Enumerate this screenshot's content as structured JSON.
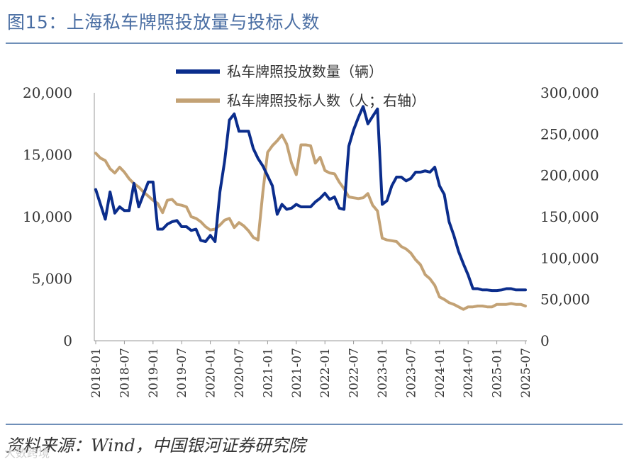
{
  "title": "图15：上海私车牌照投放量与投标人数",
  "source": "资料来源：Wind，中国银河证券研究院",
  "watermark": "大数跨境",
  "chart_data": {
    "type": "line",
    "title": "上海私车牌照投放量与投标人数",
    "x": [
      "2018-01",
      "2018-02",
      "2018-03",
      "2018-04",
      "2018-05",
      "2018-06",
      "2018-07",
      "2018-08",
      "2018-09",
      "2018-10",
      "2018-11",
      "2018-12",
      "2019-01",
      "2019-02",
      "2019-03",
      "2019-04",
      "2019-05",
      "2019-06",
      "2019-07",
      "2019-08",
      "2019-09",
      "2019-10",
      "2019-11",
      "2019-12",
      "2020-01",
      "2020-02",
      "2020-03",
      "2020-04",
      "2020-05",
      "2020-06",
      "2020-07",
      "2020-08",
      "2020-09",
      "2020-10",
      "2020-11",
      "2020-12",
      "2021-01",
      "2021-02",
      "2021-03",
      "2021-04",
      "2021-05",
      "2021-06",
      "2021-07",
      "2021-08",
      "2021-09",
      "2021-10",
      "2021-11",
      "2021-12",
      "2022-01",
      "2022-02",
      "2022-03",
      "2022-04",
      "2022-05",
      "2022-06",
      "2022-07",
      "2022-08",
      "2022-09",
      "2022-10",
      "2022-11",
      "2022-12",
      "2023-01",
      "2023-02",
      "2023-03",
      "2023-04",
      "2023-05",
      "2023-06",
      "2023-07",
      "2023-08",
      "2023-09",
      "2023-10",
      "2023-11",
      "2023-12",
      "2024-01",
      "2024-02",
      "2024-03",
      "2024-04",
      "2024-05",
      "2024-06",
      "2024-07",
      "2024-08",
      "2024-09",
      "2024-10",
      "2024-11",
      "2024-12",
      "2025-01",
      "2025-02",
      "2025-03",
      "2025-04",
      "2025-05",
      "2025-06",
      "2025-07"
    ],
    "x_tick_labels": [
      "2018-01",
      "2018-07",
      "2019-01",
      "2019-07",
      "2020-01",
      "2020-07",
      "2021-01",
      "2021-07",
      "2022-01",
      "2022-07",
      "2023-01",
      "2023-07",
      "2024-01",
      "2024-07",
      "2025-01",
      "2025-07"
    ],
    "series": [
      {
        "name": "私车牌照投放数量（辆）",
        "axis": "left",
        "color": "#0b2d8c",
        "values": [
          12200,
          11000,
          9800,
          12000,
          10300,
          10800,
          10500,
          10500,
          12700,
          10800,
          11800,
          12800,
          12800,
          9000,
          9000,
          9400,
          9600,
          9700,
          9200,
          9200,
          8900,
          9000,
          8100,
          8000,
          8500,
          8000,
          12000,
          14500,
          17800,
          18300,
          16900,
          16900,
          16900,
          15500,
          14700,
          14100,
          13300,
          12500,
          10200,
          11000,
          10600,
          10700,
          11000,
          10800,
          10800,
          10800,
          11200,
          11500,
          11900,
          11400,
          11600,
          10700,
          10600,
          15700,
          17000,
          18000,
          18900,
          17500,
          18100,
          18700,
          11000,
          11300,
          12500,
          13200,
          13200,
          12900,
          13100,
          13600,
          13600,
          13700,
          13600,
          14000,
          12500,
          11800,
          9600,
          8500,
          7200,
          6200,
          5300,
          4200,
          4200,
          4100,
          4100,
          4050,
          4050,
          4100,
          4200,
          4200,
          4100,
          4100,
          4100
        ]
      },
      {
        "name": "私车牌照投标人数（人；右轴）",
        "axis": "right",
        "color": "#c3a275",
        "values": [
          227000,
          221000,
          218000,
          208000,
          203000,
          210000,
          204000,
          196000,
          190000,
          186000,
          180000,
          175000,
          170000,
          166000,
          155000,
          170000,
          171000,
          165000,
          164000,
          162000,
          150000,
          148000,
          144000,
          138000,
          134000,
          135000,
          140000,
          146000,
          148000,
          137000,
          143000,
          139000,
          133000,
          125000,
          122000,
          180000,
          228000,
          236000,
          242000,
          249000,
          238000,
          215000,
          201000,
          237000,
          237000,
          236000,
          215000,
          222000,
          206000,
          203000,
          202000,
          192000,
          184000,
          174000,
          173000,
          172000,
          173000,
          178000,
          164000,
          157000,
          124000,
          122000,
          121000,
          120000,
          114000,
          111000,
          106000,
          98000,
          92000,
          80000,
          75000,
          67000,
          53000,
          50000,
          46000,
          44000,
          41000,
          38000,
          41000,
          41000,
          42000,
          42000,
          41000,
          41000,
          44000,
          44000,
          44000,
          45000,
          44000,
          44000,
          42000
        ]
      }
    ],
    "left_axis": {
      "range": [
        0,
        20000
      ],
      "ticks": [
        "0",
        "5,000",
        "10,000",
        "15,000",
        "20,000"
      ]
    },
    "right_axis": {
      "range": [
        0,
        300000
      ],
      "ticks": [
        "0",
        "50,000",
        "100,000",
        "150,000",
        "200,000",
        "250,000",
        "300,000"
      ]
    },
    "legend_position": "top-center",
    "grid": false
  }
}
